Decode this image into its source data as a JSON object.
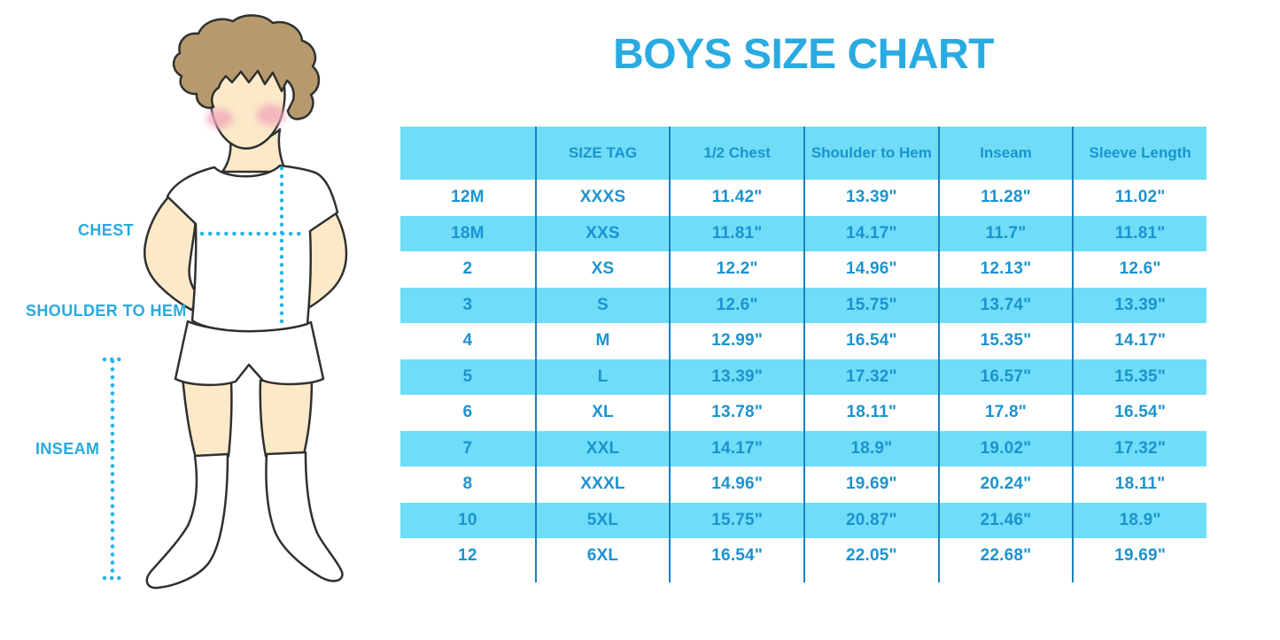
{
  "title": "BOYS SIZE CHART",
  "colors": {
    "title_blue": "#29abe2",
    "label_blue": "#29a9e0",
    "table_fill_cyan": "#6fddf8",
    "table_text_blue": "#1b93d0",
    "table_divider_blue": "#1a7fbe",
    "dotted_line_blue": "#2ab3e8",
    "skin": "#fbe9c8",
    "hair_brown": "#b6996d",
    "blush_pink": "#f1a9bc",
    "outline_dark": "#303030",
    "background": "#ffffff"
  },
  "figure": {
    "description": "boy-illustration",
    "labels": {
      "chest": "CHEST",
      "shoulder_to_hem": "SHOULDER TO HEM",
      "inseam": "INSEAM"
    }
  },
  "chart_data": {
    "type": "table",
    "title": "BOYS SIZE CHART",
    "columns": [
      "",
      "SIZE TAG",
      "1/2 Chest",
      "Shoulder to Hem",
      "Inseam",
      "Sleeve Length"
    ],
    "rows": [
      [
        "12M",
        "XXXS",
        "11.42\"",
        "13.39\"",
        "11.28\"",
        "11.02\""
      ],
      [
        "18M",
        "XXS",
        "11.81\"",
        "14.17\"",
        "11.7\"",
        "11.81\""
      ],
      [
        "2",
        "XS",
        "12.2\"",
        "14.96\"",
        "12.13\"",
        "12.6\""
      ],
      [
        "3",
        "S",
        "12.6\"",
        "15.75\"",
        "13.74\"",
        "13.39\""
      ],
      [
        "4",
        "M",
        "12.99\"",
        "16.54\"",
        "15.35\"",
        "14.17\""
      ],
      [
        "5",
        "L",
        "13.39\"",
        "17.32\"",
        "16.57\"",
        "15.35\""
      ],
      [
        "6",
        "XL",
        "13.78\"",
        "18.11\"",
        "17.8\"",
        "16.54\""
      ],
      [
        "7",
        "XXL",
        "14.17\"",
        "18.9\"",
        "19.02\"",
        "17.32\""
      ],
      [
        "8",
        "XXXL",
        "14.96\"",
        "19.69\"",
        "20.24\"",
        "18.11\""
      ],
      [
        "10",
        "5XL",
        "15.75\"",
        "20.87\"",
        "21.46\"",
        "18.9\""
      ],
      [
        "12",
        "6XL",
        "16.54\"",
        "22.05\"",
        "22.68\"",
        "19.69\""
      ]
    ],
    "row_striping": "white / cyan alternating, header cyan",
    "legend_position": "none",
    "grid": "vertical dividers only"
  }
}
